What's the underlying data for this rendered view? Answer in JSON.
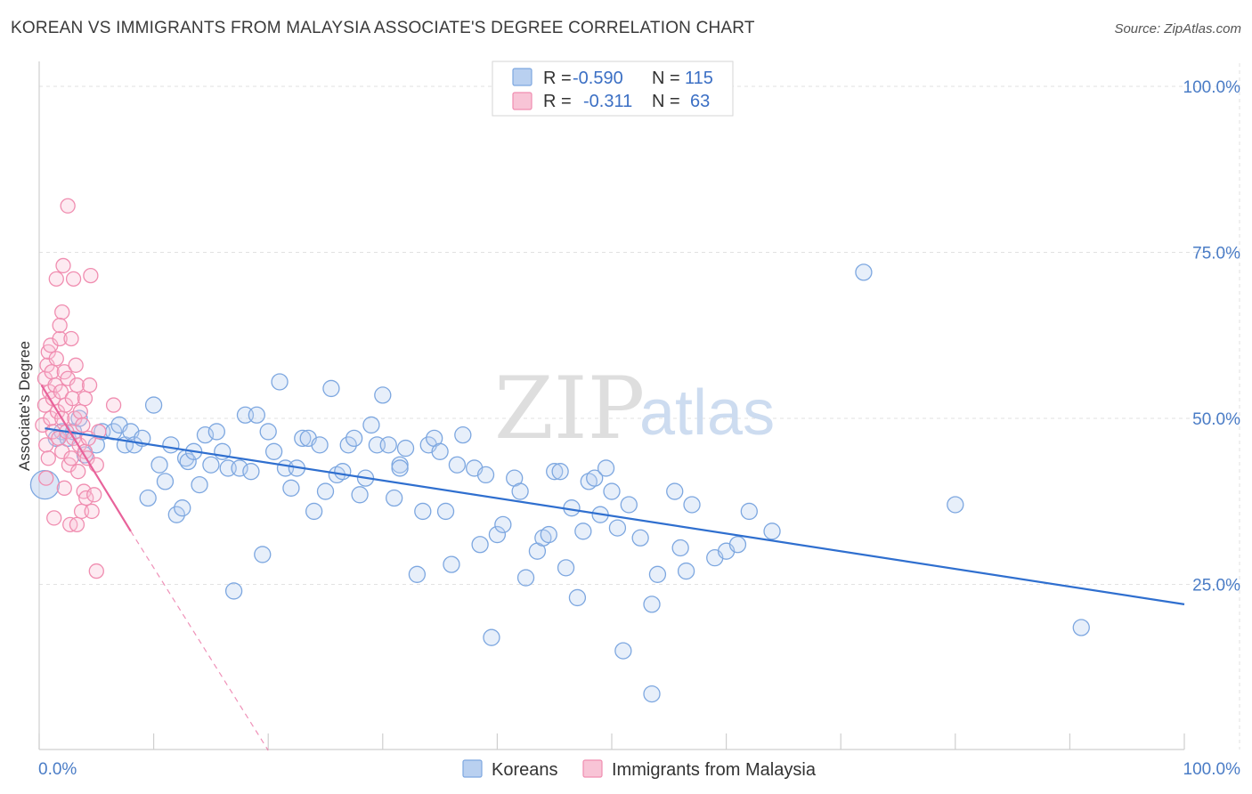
{
  "header": {
    "title": "KOREAN VS IMMIGRANTS FROM MALAYSIA ASSOCIATE'S DEGREE CORRELATION CHART",
    "source": "Source: ZipAtlas.com"
  },
  "watermark": {
    "zip": "ZIP",
    "atlas": "atlas"
  },
  "stats_legend": {
    "rows": [
      {
        "r_label": "R =",
        "r_value": "-0.590",
        "n_label": "N =",
        "n_value": "115",
        "color": "#7da7e0"
      },
      {
        "r_label": "R =",
        "r_value": "-0.311",
        "n_label": "N =",
        "n_value": "63",
        "color": "#f08db0"
      }
    ]
  },
  "chart_data": {
    "type": "scatter",
    "title": "KOREAN VS IMMIGRANTS FROM MALAYSIA ASSOCIATE'S DEGREE CORRELATION CHART",
    "xlabel": "",
    "ylabel": "Associate's Degree",
    "xlim": [
      0,
      100
    ],
    "ylim": [
      0,
      100
    ],
    "x_tick_labels": [
      "0.0%",
      "100.0%"
    ],
    "y_tick_labels": [
      {
        "value": 100,
        "label": "100.0%"
      },
      {
        "value": 75,
        "label": "75.0%"
      },
      {
        "value": 50,
        "label": "50.0%"
      },
      {
        "value": 25,
        "label": "25.0%"
      }
    ],
    "grid": true,
    "legend": [
      "Koreans",
      "Immigrants from Malaysia"
    ],
    "series": [
      {
        "name": "Koreans",
        "color": "#7da7e0",
        "line_color": "#2f6fcf",
        "r": -0.59,
        "n": 115,
        "trend": {
          "x0": 0.5,
          "y0": 48.5,
          "x1": 100,
          "y1": 22
        },
        "points": [
          [
            0.5,
            40
          ],
          [
            1.5,
            47
          ],
          [
            2,
            48
          ],
          [
            2.5,
            47
          ],
          [
            3,
            48
          ],
          [
            3.5,
            50
          ],
          [
            4,
            44.5
          ],
          [
            5,
            46
          ],
          [
            5.5,
            48
          ],
          [
            6.5,
            48
          ],
          [
            7,
            49
          ],
          [
            7.5,
            46
          ],
          [
            8,
            48
          ],
          [
            8.3,
            46
          ],
          [
            9,
            47
          ],
          [
            9.5,
            38
          ],
          [
            10,
            52
          ],
          [
            10.5,
            43
          ],
          [
            11,
            40.5
          ],
          [
            11.5,
            46
          ],
          [
            12,
            35.5
          ],
          [
            12.5,
            36.5
          ],
          [
            12.8,
            44
          ],
          [
            13,
            43.5
          ],
          [
            13.5,
            45
          ],
          [
            14,
            40
          ],
          [
            14.5,
            47.5
          ],
          [
            15,
            43
          ],
          [
            15.5,
            48
          ],
          [
            16,
            45
          ],
          [
            16.5,
            42.5
          ],
          [
            17,
            24
          ],
          [
            17.5,
            42.5
          ],
          [
            18,
            50.5
          ],
          [
            18.5,
            42
          ],
          [
            19,
            50.5
          ],
          [
            19.5,
            29.5
          ],
          [
            20,
            48
          ],
          [
            20.5,
            45
          ],
          [
            21,
            55.5
          ],
          [
            21.5,
            42.5
          ],
          [
            22,
            39.5
          ],
          [
            22.5,
            42.5
          ],
          [
            23,
            47
          ],
          [
            23.5,
            47
          ],
          [
            24,
            36
          ],
          [
            24.5,
            46
          ],
          [
            25,
            39
          ],
          [
            25.5,
            54.5
          ],
          [
            26,
            41.5
          ],
          [
            26.5,
            42
          ],
          [
            27,
            46
          ],
          [
            27.5,
            47
          ],
          [
            28,
            38.5
          ],
          [
            28.5,
            41
          ],
          [
            29,
            49
          ],
          [
            29.5,
            46
          ],
          [
            30,
            53.5
          ],
          [
            30.5,
            46
          ],
          [
            31,
            38
          ],
          [
            31.5,
            43
          ],
          [
            32,
            45.5
          ],
          [
            31.5,
            42.5
          ],
          [
            33,
            26.5
          ],
          [
            33.5,
            36
          ],
          [
            34,
            46
          ],
          [
            34.5,
            47
          ],
          [
            35,
            45
          ],
          [
            35.5,
            36
          ],
          [
            36,
            28
          ],
          [
            36.5,
            43
          ],
          [
            37,
            47.5
          ],
          [
            38,
            42.5
          ],
          [
            38.5,
            31
          ],
          [
            39,
            41.5
          ],
          [
            39.5,
            17
          ],
          [
            40,
            32.5
          ],
          [
            40.5,
            34
          ],
          [
            41.5,
            41
          ],
          [
            42,
            39
          ],
          [
            42.5,
            26
          ],
          [
            43.5,
            30
          ],
          [
            44,
            32
          ],
          [
            44.5,
            32.5
          ],
          [
            45,
            42
          ],
          [
            45.5,
            42
          ],
          [
            46,
            27.5
          ],
          [
            46.5,
            36.5
          ],
          [
            47,
            23
          ],
          [
            47.5,
            33
          ],
          [
            48,
            40.5
          ],
          [
            48.5,
            41
          ],
          [
            49,
            35.5
          ],
          [
            49.5,
            42.5
          ],
          [
            50,
            39
          ],
          [
            50.5,
            33.5
          ],
          [
            51,
            15
          ],
          [
            51.5,
            37
          ],
          [
            52.5,
            32
          ],
          [
            53.5,
            8.5
          ],
          [
            53.5,
            22
          ],
          [
            54,
            26.5
          ],
          [
            55.5,
            39
          ],
          [
            56,
            30.5
          ],
          [
            56.5,
            27
          ],
          [
            57,
            37
          ],
          [
            59,
            29
          ],
          [
            60,
            30
          ],
          [
            61,
            31
          ],
          [
            62,
            36
          ],
          [
            64,
            33
          ],
          [
            72,
            72
          ],
          [
            80,
            37
          ],
          [
            91,
            18.5
          ]
        ]
      },
      {
        "name": "Immigrants from Malaysia",
        "color": "#f08db0",
        "line_color": "#e8629a",
        "r": -0.311,
        "n": 63,
        "trend": {
          "x0": 0.2,
          "y0": 55,
          "x1": 8,
          "y1": 33
        },
        "trend_dashed": {
          "x0": 8,
          "y0": 33,
          "x1": 20,
          "y1": 0
        },
        "points": [
          [
            0.3,
            49
          ],
          [
            0.5,
            52
          ],
          [
            0.5,
            56
          ],
          [
            0.6,
            46
          ],
          [
            0.7,
            58
          ],
          [
            0.8,
            60
          ],
          [
            0.8,
            44
          ],
          [
            0.9,
            54
          ],
          [
            1,
            50
          ],
          [
            1,
            61
          ],
          [
            1.1,
            57
          ],
          [
            1.2,
            48
          ],
          [
            1.2,
            53
          ],
          [
            1.3,
            35
          ],
          [
            1.4,
            55
          ],
          [
            1.5,
            59
          ],
          [
            1.5,
            71
          ],
          [
            1.6,
            51
          ],
          [
            1.7,
            47
          ],
          [
            1.8,
            62
          ],
          [
            1.9,
            54
          ],
          [
            2,
            50
          ],
          [
            2,
            66
          ],
          [
            2,
            45
          ],
          [
            2.1,
            73
          ],
          [
            2.2,
            57
          ],
          [
            2.3,
            52
          ],
          [
            2.4,
            48
          ],
          [
            2.5,
            56
          ],
          [
            2.5,
            82
          ],
          [
            2.6,
            43
          ],
          [
            2.7,
            34
          ],
          [
            2.8,
            62
          ],
          [
            2.9,
            53
          ],
          [
            3,
            47
          ],
          [
            3,
            71
          ],
          [
            3.1,
            50
          ],
          [
            3.2,
            58
          ],
          [
            3.3,
            55
          ],
          [
            3.4,
            42
          ],
          [
            3.5,
            46
          ],
          [
            3.6,
            51
          ],
          [
            3.7,
            36
          ],
          [
            3.8,
            49
          ],
          [
            3.9,
            39
          ],
          [
            4,
            53
          ],
          [
            4,
            45
          ],
          [
            4.1,
            38
          ],
          [
            4.2,
            44
          ],
          [
            4.3,
            47
          ],
          [
            4.4,
            55
          ],
          [
            4.5,
            71.5
          ],
          [
            4.6,
            36
          ],
          [
            4.8,
            38.5
          ],
          [
            5,
            43
          ],
          [
            5,
            27
          ],
          [
            5.2,
            48
          ],
          [
            6.5,
            52
          ],
          [
            1.8,
            64
          ],
          [
            2.2,
            39.5
          ],
          [
            3.3,
            34
          ],
          [
            0.6,
            41
          ],
          [
            2.8,
            44
          ]
        ]
      }
    ]
  }
}
